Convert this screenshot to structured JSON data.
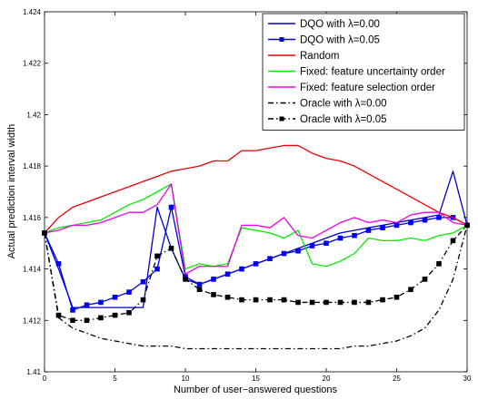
{
  "chart_data": {
    "type": "line",
    "title": "",
    "xlabel": "Number of user−answered questions",
    "ylabel": "Actual prediction interval width",
    "xlim": [
      0,
      30
    ],
    "ylim": [
      1.41,
      1.424
    ],
    "xticks": [
      0,
      5,
      10,
      15,
      20,
      25,
      30
    ],
    "yticks": [
      1.41,
      1.412,
      1.414,
      1.416,
      1.418,
      1.42,
      1.422,
      1.424
    ],
    "ytick_labels": [
      "1.41",
      "1.412",
      "1.414",
      "1.416",
      "1.418",
      "1.42",
      "1.422",
      "1.424"
    ],
    "grid": false,
    "legend_position": "top-right",
    "x": [
      0,
      1,
      2,
      3,
      4,
      5,
      6,
      7,
      8,
      9,
      10,
      11,
      12,
      13,
      14,
      15,
      16,
      17,
      18,
      19,
      20,
      21,
      22,
      23,
      24,
      25,
      26,
      27,
      28,
      29,
      30
    ],
    "series": [
      {
        "name": "DQO with λ=0.00",
        "color": "#0000cc",
        "dash": "solid",
        "marker": "none",
        "values": [
          1.4154,
          1.414,
          1.4125,
          1.4125,
          1.4125,
          1.4125,
          1.4125,
          1.4125,
          1.4164,
          1.4148,
          1.4136,
          1.4134,
          1.4136,
          1.4138,
          1.414,
          1.4142,
          1.4144,
          1.4146,
          1.4148,
          1.415,
          1.4152,
          1.4154,
          1.4155,
          1.4156,
          1.4157,
          1.4158,
          1.4159,
          1.416,
          1.4161,
          1.4178,
          1.4157
        ]
      },
      {
        "name": "DQO with λ=0.05",
        "color": "#0000ee",
        "dash": "solid",
        "marker": "square",
        "values": [
          1.4154,
          1.4142,
          1.4124,
          1.4126,
          1.4127,
          1.4129,
          1.4131,
          1.4135,
          1.414,
          1.4164,
          1.4137,
          1.4134,
          1.4136,
          1.4138,
          1.414,
          1.4142,
          1.4144,
          1.4146,
          1.4147,
          1.4149,
          1.415,
          1.4152,
          1.4153,
          1.4155,
          1.4156,
          1.4157,
          1.4158,
          1.4159,
          1.416,
          1.416,
          1.4157
        ]
      },
      {
        "name": "Random",
        "color": "#ee0000",
        "dash": "solid",
        "marker": "none",
        "values": [
          1.4154,
          1.416,
          1.4164,
          1.4166,
          1.4168,
          1.417,
          1.4172,
          1.4174,
          1.4176,
          1.4178,
          1.4179,
          1.418,
          1.4182,
          1.4182,
          1.4186,
          1.4186,
          1.4187,
          1.4188,
          1.4188,
          1.4185,
          1.4183,
          1.4182,
          1.418,
          1.4177,
          1.4174,
          1.4171,
          1.4168,
          1.4165,
          1.4162,
          1.416,
          1.4157
        ]
      },
      {
        "name": "Fixed: feature uncertainty order",
        "color": "#00ee00",
        "dash": "solid",
        "marker": "none",
        "values": [
          1.4154,
          1.4156,
          1.4157,
          1.4158,
          1.4159,
          1.4162,
          1.4165,
          1.4167,
          1.417,
          1.4173,
          1.414,
          1.4142,
          1.4141,
          1.4142,
          1.4156,
          1.4155,
          1.4154,
          1.4152,
          1.4155,
          1.4142,
          1.4141,
          1.4143,
          1.4146,
          1.4152,
          1.4151,
          1.4151,
          1.4152,
          1.4151,
          1.4153,
          1.4154,
          1.4157
        ]
      },
      {
        "name": "Fixed: feature selection order",
        "color": "#ee00ee",
        "dash": "solid",
        "marker": "none",
        "values": [
          1.4154,
          1.4155,
          1.4157,
          1.4157,
          1.4158,
          1.416,
          1.4162,
          1.4162,
          1.4165,
          1.4173,
          1.4138,
          1.4141,
          1.4141,
          1.4141,
          1.4157,
          1.4157,
          1.4156,
          1.416,
          1.4153,
          1.4152,
          1.4155,
          1.4158,
          1.416,
          1.4158,
          1.4159,
          1.4158,
          1.4161,
          1.4162,
          1.4162,
          1.4158,
          1.4157
        ]
      },
      {
        "name": "Oracle with λ=0.00",
        "color": "#000000",
        "dash": "dashdot",
        "marker": "none",
        "values": [
          1.4154,
          1.4121,
          1.4117,
          1.4115,
          1.4113,
          1.4112,
          1.4111,
          1.411,
          1.411,
          1.411,
          1.4109,
          1.4109,
          1.4109,
          1.4109,
          1.4109,
          1.4109,
          1.4109,
          1.4109,
          1.4109,
          1.4109,
          1.4109,
          1.4109,
          1.411,
          1.411,
          1.4111,
          1.4112,
          1.4114,
          1.4117,
          1.4124,
          1.4136,
          1.4157
        ]
      },
      {
        "name": "Oracle with λ=0.05",
        "color": "#000000",
        "dash": "dashdot",
        "marker": "square",
        "values": [
          1.4154,
          1.4122,
          1.412,
          1.412,
          1.4121,
          1.4122,
          1.4123,
          1.4128,
          1.4145,
          1.4148,
          1.4136,
          1.4132,
          1.413,
          1.4129,
          1.4128,
          1.4128,
          1.4128,
          1.4128,
          1.4127,
          1.4127,
          1.4127,
          1.4127,
          1.4127,
          1.4127,
          1.4128,
          1.4129,
          1.4132,
          1.4136,
          1.4142,
          1.4151,
          1.4157
        ]
      }
    ]
  }
}
